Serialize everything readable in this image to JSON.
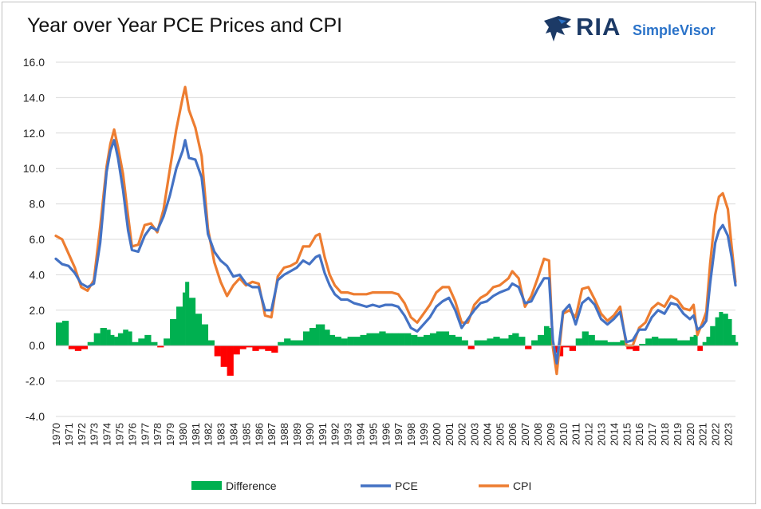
{
  "header": {
    "title": "Year over Year PCE Prices and CPI",
    "logo_text": "RIA",
    "logo_subtext": "SimpleVisor"
  },
  "chart_data": {
    "type": "line",
    "title": "Year over Year PCE Prices and CPI",
    "xlabel": "",
    "ylabel": "",
    "ylim": [
      -4,
      16
    ],
    "yticks": [
      "-4.0",
      "-2.0",
      "0.0",
      "2.0",
      "4.0",
      "6.0",
      "8.0",
      "10.0",
      "12.0",
      "14.0",
      "16.0"
    ],
    "xlim": [
      1970,
      2023.6
    ],
    "xticks": [
      "1970",
      "1971",
      "1972",
      "1973",
      "1974",
      "1975",
      "1976",
      "1977",
      "1978",
      "1979",
      "1980",
      "1981",
      "1982",
      "1983",
      "1984",
      "1985",
      "1986",
      "1987",
      "1988",
      "1989",
      "1990",
      "1991",
      "1992",
      "1993",
      "1994",
      "1995",
      "1996",
      "1997",
      "1998",
      "1999",
      "2000",
      "2001",
      "2002",
      "2003",
      "2004",
      "2005",
      "2006",
      "2007",
      "2008",
      "2009",
      "2010",
      "2011",
      "2012",
      "2013",
      "2014",
      "2015",
      "2016",
      "2017",
      "2018",
      "2019",
      "2020",
      "2021",
      "2022",
      "2023"
    ],
    "grid": true,
    "legend": "bottom",
    "colors": {
      "Difference_pos": "#00b050",
      "Difference_neg": "#ff0000",
      "PCE": "#4472c4",
      "CPI": "#ed7d31"
    },
    "x": [
      1970.0,
      1970.5,
      1971.0,
      1971.5,
      1972.0,
      1972.5,
      1973.0,
      1973.5,
      1974.0,
      1974.3,
      1974.6,
      1974.9,
      1975.3,
      1975.7,
      1976.0,
      1976.5,
      1977.0,
      1977.5,
      1978.0,
      1978.5,
      1979.0,
      1979.5,
      1980.0,
      1980.2,
      1980.5,
      1981.0,
      1981.5,
      1982.0,
      1982.5,
      1983.0,
      1983.5,
      1984.0,
      1984.5,
      1985.0,
      1985.5,
      1986.0,
      1986.5,
      1987.0,
      1987.5,
      1988.0,
      1988.5,
      1989.0,
      1989.5,
      1990.0,
      1990.5,
      1990.8,
      1991.2,
      1991.6,
      1992.0,
      1992.5,
      1993.0,
      1993.5,
      1994.0,
      1994.5,
      1995.0,
      1995.5,
      1996.0,
      1996.5,
      1997.0,
      1997.5,
      1998.0,
      1998.5,
      1999.0,
      1999.5,
      2000.0,
      2000.5,
      2001.0,
      2001.5,
      2002.0,
      2002.5,
      2003.0,
      2003.5,
      2004.0,
      2004.5,
      2005.0,
      2005.7,
      2006.0,
      2006.5,
      2007.0,
      2007.5,
      2008.0,
      2008.5,
      2008.9,
      2009.2,
      2009.5,
      2010.0,
      2010.5,
      2011.0,
      2011.5,
      2012.0,
      2012.5,
      2013.0,
      2013.5,
      2014.0,
      2014.5,
      2015.0,
      2015.5,
      2016.0,
      2016.5,
      2017.0,
      2017.5,
      2018.0,
      2018.5,
      2019.0,
      2019.5,
      2020.0,
      2020.3,
      2020.6,
      2021.0,
      2021.3,
      2021.6,
      2022.0,
      2022.3,
      2022.6,
      2023.0,
      2023.3,
      2023.6
    ],
    "series": [
      {
        "name": "Difference",
        "kind": "bar",
        "values": [
          1.3,
          1.4,
          -0.2,
          -0.3,
          -0.2,
          0.2,
          0.7,
          1.0,
          0.9,
          0.6,
          0.5,
          0.7,
          0.9,
          0.8,
          0.2,
          0.4,
          0.6,
          0.2,
          -0.1,
          0.4,
          1.5,
          2.2,
          3.0,
          3.6,
          2.7,
          1.8,
          1.2,
          0.3,
          -0.6,
          -1.2,
          -1.7,
          -0.5,
          -0.2,
          -0.1,
          -0.3,
          -0.2,
          -0.3,
          -0.4,
          0.2,
          0.4,
          0.3,
          0.3,
          0.8,
          1.0,
          1.2,
          1.2,
          0.9,
          0.6,
          0.5,
          0.4,
          0.5,
          0.5,
          0.6,
          0.7,
          0.7,
          0.8,
          0.7,
          0.7,
          0.7,
          0.7,
          0.6,
          0.5,
          0.6,
          0.7,
          0.8,
          0.8,
          0.6,
          0.5,
          0.3,
          -0.2,
          0.3,
          0.3,
          0.4,
          0.5,
          0.4,
          0.6,
          0.7,
          0.5,
          -0.2,
          0.3,
          0.6,
          1.1,
          1.0,
          -0.4,
          -0.6,
          -0.1,
          -0.3,
          0.4,
          0.8,
          0.6,
          0.3,
          0.3,
          0.2,
          0.2,
          0.3,
          -0.2,
          -0.3,
          0.1,
          0.4,
          0.5,
          0.4,
          0.4,
          0.4,
          0.3,
          0.3,
          0.5,
          0.6,
          -0.3,
          0.2,
          0.5,
          1.1,
          1.6,
          1.9,
          1.8,
          1.5,
          0.6,
          0.2
        ]
      },
      {
        "name": "PCE",
        "kind": "line",
        "values": [
          4.9,
          4.6,
          4.5,
          4.1,
          3.5,
          3.3,
          3.5,
          5.8,
          9.8,
          11.0,
          11.6,
          10.6,
          8.8,
          6.5,
          5.4,
          5.3,
          6.2,
          6.7,
          6.5,
          7.3,
          8.5,
          10.0,
          11.0,
          11.6,
          10.6,
          10.5,
          9.5,
          6.3,
          5.3,
          4.8,
          4.5,
          3.9,
          4.0,
          3.5,
          3.3,
          3.3,
          2.0,
          2.0,
          3.7,
          4.0,
          4.2,
          4.4,
          4.8,
          4.6,
          5.0,
          5.1,
          4.1,
          3.4,
          2.9,
          2.6,
          2.6,
          2.4,
          2.3,
          2.2,
          2.3,
          2.2,
          2.3,
          2.3,
          2.2,
          1.7,
          1.0,
          0.8,
          1.2,
          1.6,
          2.2,
          2.5,
          2.7,
          2.0,
          1.0,
          1.5,
          2.0,
          2.4,
          2.5,
          2.8,
          3.0,
          3.2,
          3.5,
          3.3,
          2.4,
          2.5,
          3.2,
          3.8,
          3.8,
          0.3,
          -1.0,
          1.9,
          2.3,
          1.2,
          2.4,
          2.7,
          2.3,
          1.5,
          1.2,
          1.5,
          1.9,
          0.2,
          0.3,
          0.9,
          0.9,
          1.6,
          2.0,
          1.8,
          2.4,
          2.3,
          1.8,
          1.5,
          1.7,
          0.9,
          1.1,
          1.4,
          3.5,
          5.8,
          6.5,
          6.8,
          6.2,
          5.0,
          3.4
        ]
      },
      {
        "name": "CPI",
        "kind": "line",
        "values": [
          6.2,
          6.0,
          5.2,
          4.4,
          3.3,
          3.1,
          3.7,
          6.7,
          10.1,
          11.4,
          12.2,
          11.2,
          9.7,
          7.3,
          5.6,
          5.7,
          6.8,
          6.9,
          6.4,
          7.7,
          10.0,
          12.2,
          14.0,
          14.6,
          13.3,
          12.3,
          10.7,
          6.6,
          4.7,
          3.6,
          2.8,
          3.4,
          3.8,
          3.4,
          3.6,
          3.5,
          1.7,
          1.6,
          3.9,
          4.4,
          4.5,
          4.7,
          5.6,
          5.6,
          6.2,
          6.3,
          5.0,
          4.0,
          3.4,
          3.0,
          3.0,
          2.9,
          2.9,
          2.9,
          3.0,
          3.0,
          3.0,
          3.0,
          2.9,
          2.4,
          1.6,
          1.3,
          1.8,
          2.3,
          3.0,
          3.3,
          3.3,
          2.5,
          1.3,
          1.3,
          2.3,
          2.7,
          2.9,
          3.3,
          3.4,
          3.8,
          4.2,
          3.8,
          2.2,
          2.8,
          3.8,
          4.9,
          4.8,
          -0.1,
          -1.6,
          1.8,
          2.0,
          1.6,
          3.2,
          3.3,
          2.6,
          1.8,
          1.4,
          1.7,
          2.2,
          0.0,
          0.0,
          1.0,
          1.3,
          2.1,
          2.4,
          2.2,
          2.8,
          2.6,
          2.1,
          2.0,
          2.3,
          0.6,
          1.3,
          1.9,
          4.6,
          7.4,
          8.4,
          8.6,
          7.7,
          5.6,
          3.6
        ]
      }
    ]
  },
  "legend": {
    "items": [
      "Difference",
      "PCE",
      "CPI"
    ]
  }
}
